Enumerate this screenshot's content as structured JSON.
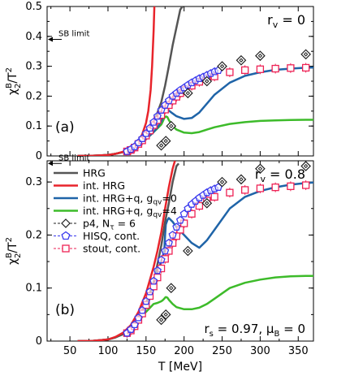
{
  "colors": {
    "hrg": "#555555",
    "int_hrg": "#e8242b",
    "gqv0": "#1f64a8",
    "gqv4": "#3dbb2a",
    "p4": "#222222",
    "hisq": "#3a3aee",
    "stout": "#ee2255"
  },
  "chart_data": [
    {
      "type": "line",
      "panel_label": "(a)",
      "annotation": "r_v = 0",
      "annotation_parts": {
        "main": "r",
        "sub": "v",
        "rest": " = 0"
      },
      "sb_limit_label": "SB limit",
      "sb_limit_value": 0.39,
      "ylabel": {
        "main": "χ",
        "sup": "B",
        "sub": "2",
        "rest": "/T",
        "sup2": "2"
      },
      "ylim": [
        0,
        0.5
      ],
      "xlim": [
        20,
        370
      ],
      "yticks": [
        {
          "v": 0,
          "label": "0"
        },
        {
          "v": 0.1,
          "label": "0.1"
        },
        {
          "v": 0.2,
          "label": "0.2"
        },
        {
          "v": 0.3,
          "label": "0.3"
        },
        {
          "v": 0.4,
          "label": "0.4"
        },
        {
          "v": 0.5,
          "label": "0.5"
        }
      ],
      "series": [
        {
          "key": "hrg",
          "x": [
            60,
            80,
            100,
            110,
            120,
            130,
            140,
            150,
            160,
            170,
            175,
            180,
            185,
            190,
            195,
            198
          ],
          "y": [
            0,
            0.0005,
            0.003,
            0.007,
            0.013,
            0.023,
            0.04,
            0.068,
            0.11,
            0.18,
            0.235,
            0.3,
            0.37,
            0.43,
            0.49,
            0.5
          ]
        },
        {
          "key": "int_hrg",
          "x": [
            60,
            80,
            100,
            110,
            120,
            130,
            140,
            145,
            150,
            153,
            156,
            158,
            160,
            161
          ],
          "y": [
            0,
            0.0005,
            0.003,
            0.007,
            0.014,
            0.026,
            0.05,
            0.072,
            0.11,
            0.15,
            0.22,
            0.3,
            0.42,
            0.5
          ]
        },
        {
          "key": "gqv0",
          "x": [
            60,
            80,
            100,
            110,
            120,
            130,
            140,
            150,
            160,
            165,
            170,
            172,
            174,
            176,
            178,
            180,
            185,
            190,
            200,
            210,
            220,
            230,
            240,
            260,
            280,
            300,
            320,
            340,
            360,
            370
          ],
          "y": [
            0,
            0.0005,
            0.003,
            0.007,
            0.013,
            0.022,
            0.036,
            0.056,
            0.08,
            0.095,
            0.115,
            0.13,
            0.148,
            0.155,
            0.156,
            0.152,
            0.142,
            0.133,
            0.124,
            0.127,
            0.145,
            0.175,
            0.205,
            0.245,
            0.268,
            0.28,
            0.288,
            0.292,
            0.295,
            0.296
          ]
        },
        {
          "key": "gqv4",
          "x": [
            60,
            80,
            100,
            110,
            120,
            130,
            140,
            150,
            160,
            165,
            170,
            172,
            174,
            176,
            178,
            180,
            185,
            190,
            200,
            210,
            220,
            230,
            240,
            260,
            280,
            300,
            320,
            340,
            360,
            370
          ],
          "y": [
            0,
            0.0005,
            0.003,
            0.007,
            0.013,
            0.022,
            0.036,
            0.056,
            0.08,
            0.092,
            0.105,
            0.115,
            0.127,
            0.132,
            0.13,
            0.12,
            0.1,
            0.088,
            0.078,
            0.076,
            0.08,
            0.088,
            0.096,
            0.107,
            0.113,
            0.117,
            0.119,
            0.12,
            0.121,
            0.121
          ]
        }
      ],
      "p4": {
        "x": [
          170,
          176,
          183,
          205,
          230,
          250,
          275,
          300,
          360
        ],
        "y": [
          0.035,
          0.05,
          0.1,
          0.21,
          0.25,
          0.3,
          0.32,
          0.335,
          0.34
        ]
      },
      "hisq": {
        "x": [
          125,
          130,
          135,
          140,
          145,
          150,
          155,
          160,
          165,
          170,
          175,
          180,
          185,
          190,
          195,
          200,
          205,
          210,
          215,
          220,
          225,
          230,
          235,
          240,
          245
        ],
        "y": [
          0.015,
          0.022,
          0.031,
          0.044,
          0.058,
          0.075,
          0.093,
          0.113,
          0.133,
          0.153,
          0.17,
          0.185,
          0.2,
          0.21,
          0.22,
          0.228,
          0.237,
          0.245,
          0.252,
          0.259,
          0.264,
          0.27,
          0.276,
          0.282,
          0.286
        ]
      },
      "stout": {
        "x": [
          125,
          130,
          135,
          140,
          145,
          150,
          155,
          160,
          165,
          170,
          175,
          180,
          185,
          190,
          195,
          200,
          210,
          220,
          230,
          240,
          260,
          280,
          300,
          320,
          340,
          360
        ],
        "y": [
          0.015,
          0.02,
          0.028,
          0.04,
          0.052,
          0.068,
          0.085,
          0.103,
          0.12,
          0.137,
          0.155,
          0.17,
          0.185,
          0.198,
          0.21,
          0.22,
          0.235,
          0.248,
          0.258,
          0.266,
          0.28,
          0.287,
          0.29,
          0.292,
          0.294,
          0.295
        ]
      }
    },
    {
      "type": "line",
      "panel_label": "(b)",
      "annotation": "r_v = 0.8",
      "annotation_parts": {
        "main": "r",
        "sub": "v",
        "rest": " = 0.8"
      },
      "annotation2": "r_s = 0.97, μ_B = 0",
      "annotation2_parts": {
        "a": "r",
        "asub": "s",
        "b": " = 0.97, μ",
        "bsub": "B",
        "c": " = 0"
      },
      "sb_limit_label": "SB limit",
      "sb_limit_value": 0.335,
      "ylabel": {
        "main": "χ",
        "sup": "B",
        "sub": "2",
        "rest": "/T",
        "sup2": "2"
      },
      "xlabel": "T [MeV]",
      "ylim": [
        0,
        0.34
      ],
      "xlim": [
        20,
        370
      ],
      "yticks": [
        {
          "v": 0,
          "label": "0"
        },
        {
          "v": 0.1,
          "label": "0.1"
        },
        {
          "v": 0.2,
          "label": "0.2"
        },
        {
          "v": 0.3,
          "label": "0.3"
        }
      ],
      "xticks": [
        {
          "v": 50,
          "label": "50"
        },
        {
          "v": 100,
          "label": "100"
        },
        {
          "v": 150,
          "label": "150"
        },
        {
          "v": 200,
          "label": "200"
        },
        {
          "v": 250,
          "label": "250"
        },
        {
          "v": 300,
          "label": "300"
        },
        {
          "v": 350,
          "label": "350"
        }
      ],
      "series": [
        {
          "key": "hrg",
          "x": [
            60,
            80,
            100,
            110,
            120,
            130,
            140,
            150,
            160,
            170,
            175,
            180,
            185,
            190,
            193
          ],
          "y": [
            0,
            0.0005,
            0.003,
            0.007,
            0.013,
            0.023,
            0.04,
            0.068,
            0.11,
            0.18,
            0.225,
            0.26,
            0.3,
            0.33,
            0.335
          ]
        },
        {
          "key": "int_hrg",
          "x": [
            60,
            80,
            100,
            110,
            120,
            130,
            140,
            150,
            160,
            165,
            170,
            175,
            180,
            185,
            188
          ],
          "y": [
            0,
            0.0005,
            0.003,
            0.008,
            0.016,
            0.03,
            0.055,
            0.09,
            0.14,
            0.17,
            0.205,
            0.25,
            0.29,
            0.325,
            0.34
          ]
        },
        {
          "key": "gqv0",
          "x": [
            60,
            80,
            100,
            110,
            120,
            130,
            140,
            150,
            160,
            165,
            170,
            172,
            174,
            175,
            176,
            178,
            180,
            185,
            190,
            200,
            210,
            220,
            230,
            240,
            260,
            280,
            300,
            320,
            340,
            360,
            370
          ],
          "y": [
            0,
            0.0005,
            0.003,
            0.007,
            0.014,
            0.025,
            0.045,
            0.072,
            0.11,
            0.13,
            0.15,
            0.16,
            0.17,
            0.2,
            0.22,
            0.228,
            0.232,
            0.225,
            0.215,
            0.2,
            0.185,
            0.176,
            0.19,
            0.21,
            0.25,
            0.272,
            0.283,
            0.29,
            0.295,
            0.298,
            0.299
          ]
        },
        {
          "key": "gqv4",
          "x": [
            60,
            80,
            100,
            110,
            120,
            130,
            140,
            150,
            160,
            165,
            170,
            172,
            174,
            175,
            176,
            178,
            180,
            185,
            190,
            200,
            210,
            220,
            230,
            240,
            260,
            280,
            300,
            320,
            340,
            360,
            370
          ],
          "y": [
            0,
            0.0005,
            0.003,
            0.007,
            0.013,
            0.022,
            0.038,
            0.055,
            0.07,
            0.072,
            0.075,
            0.077,
            0.08,
            0.082,
            0.083,
            0.082,
            0.078,
            0.07,
            0.064,
            0.06,
            0.06,
            0.063,
            0.07,
            0.08,
            0.1,
            0.11,
            0.116,
            0.12,
            0.122,
            0.123,
            0.123
          ]
        }
      ],
      "p4": {
        "x": [
          170,
          176,
          183,
          205,
          230,
          250,
          275,
          300,
          360
        ],
        "y": [
          0.04,
          0.05,
          0.1,
          0.17,
          0.26,
          0.3,
          0.305,
          0.325,
          0.33
        ]
      },
      "hisq": {
        "x": [
          125,
          130,
          135,
          140,
          145,
          150,
          155,
          160,
          165,
          170,
          175,
          180,
          185,
          190,
          195,
          200,
          205,
          210,
          215,
          220,
          225,
          230,
          235,
          240,
          245
        ],
        "y": [
          0.015,
          0.022,
          0.031,
          0.044,
          0.058,
          0.075,
          0.093,
          0.113,
          0.133,
          0.153,
          0.17,
          0.185,
          0.2,
          0.215,
          0.228,
          0.24,
          0.25,
          0.258,
          0.264,
          0.27,
          0.275,
          0.28,
          0.284,
          0.287,
          0.29
        ]
      },
      "stout": {
        "x": [
          125,
          130,
          135,
          140,
          145,
          150,
          155,
          160,
          165,
          170,
          175,
          180,
          185,
          190,
          195,
          200,
          210,
          220,
          230,
          240,
          260,
          280,
          300,
          320,
          340,
          360
        ],
        "y": [
          0.015,
          0.02,
          0.028,
          0.04,
          0.052,
          0.068,
          0.085,
          0.103,
          0.12,
          0.137,
          0.155,
          0.17,
          0.185,
          0.198,
          0.21,
          0.222,
          0.24,
          0.255,
          0.265,
          0.272,
          0.28,
          0.285,
          0.288,
          0.29,
          0.292,
          0.294
        ]
      }
    }
  ],
  "legend": [
    {
      "key": "hrg",
      "kind": "line",
      "parts": {
        "main": "HRG"
      }
    },
    {
      "key": "int_hrg",
      "kind": "line",
      "parts": {
        "main": "int. HRG"
      }
    },
    {
      "key": "gqv0",
      "kind": "line",
      "parts": {
        "main": "int. HRG+q, g",
        "sub": "qv",
        "rest": "=0"
      }
    },
    {
      "key": "gqv4",
      "kind": "line",
      "parts": {
        "main": "int. HRG+q, g",
        "sub": "qv",
        "rest": "=4"
      }
    },
    {
      "key": "p4",
      "kind": "diamond",
      "parts": {
        "main": "p4, N",
        "sub": "τ",
        "rest": " = 6"
      }
    },
    {
      "key": "hisq",
      "kind": "pentagon",
      "parts": {
        "main": "HISQ, cont."
      }
    },
    {
      "key": "stout",
      "kind": "square",
      "parts": {
        "main": "stout, cont."
      }
    }
  ]
}
